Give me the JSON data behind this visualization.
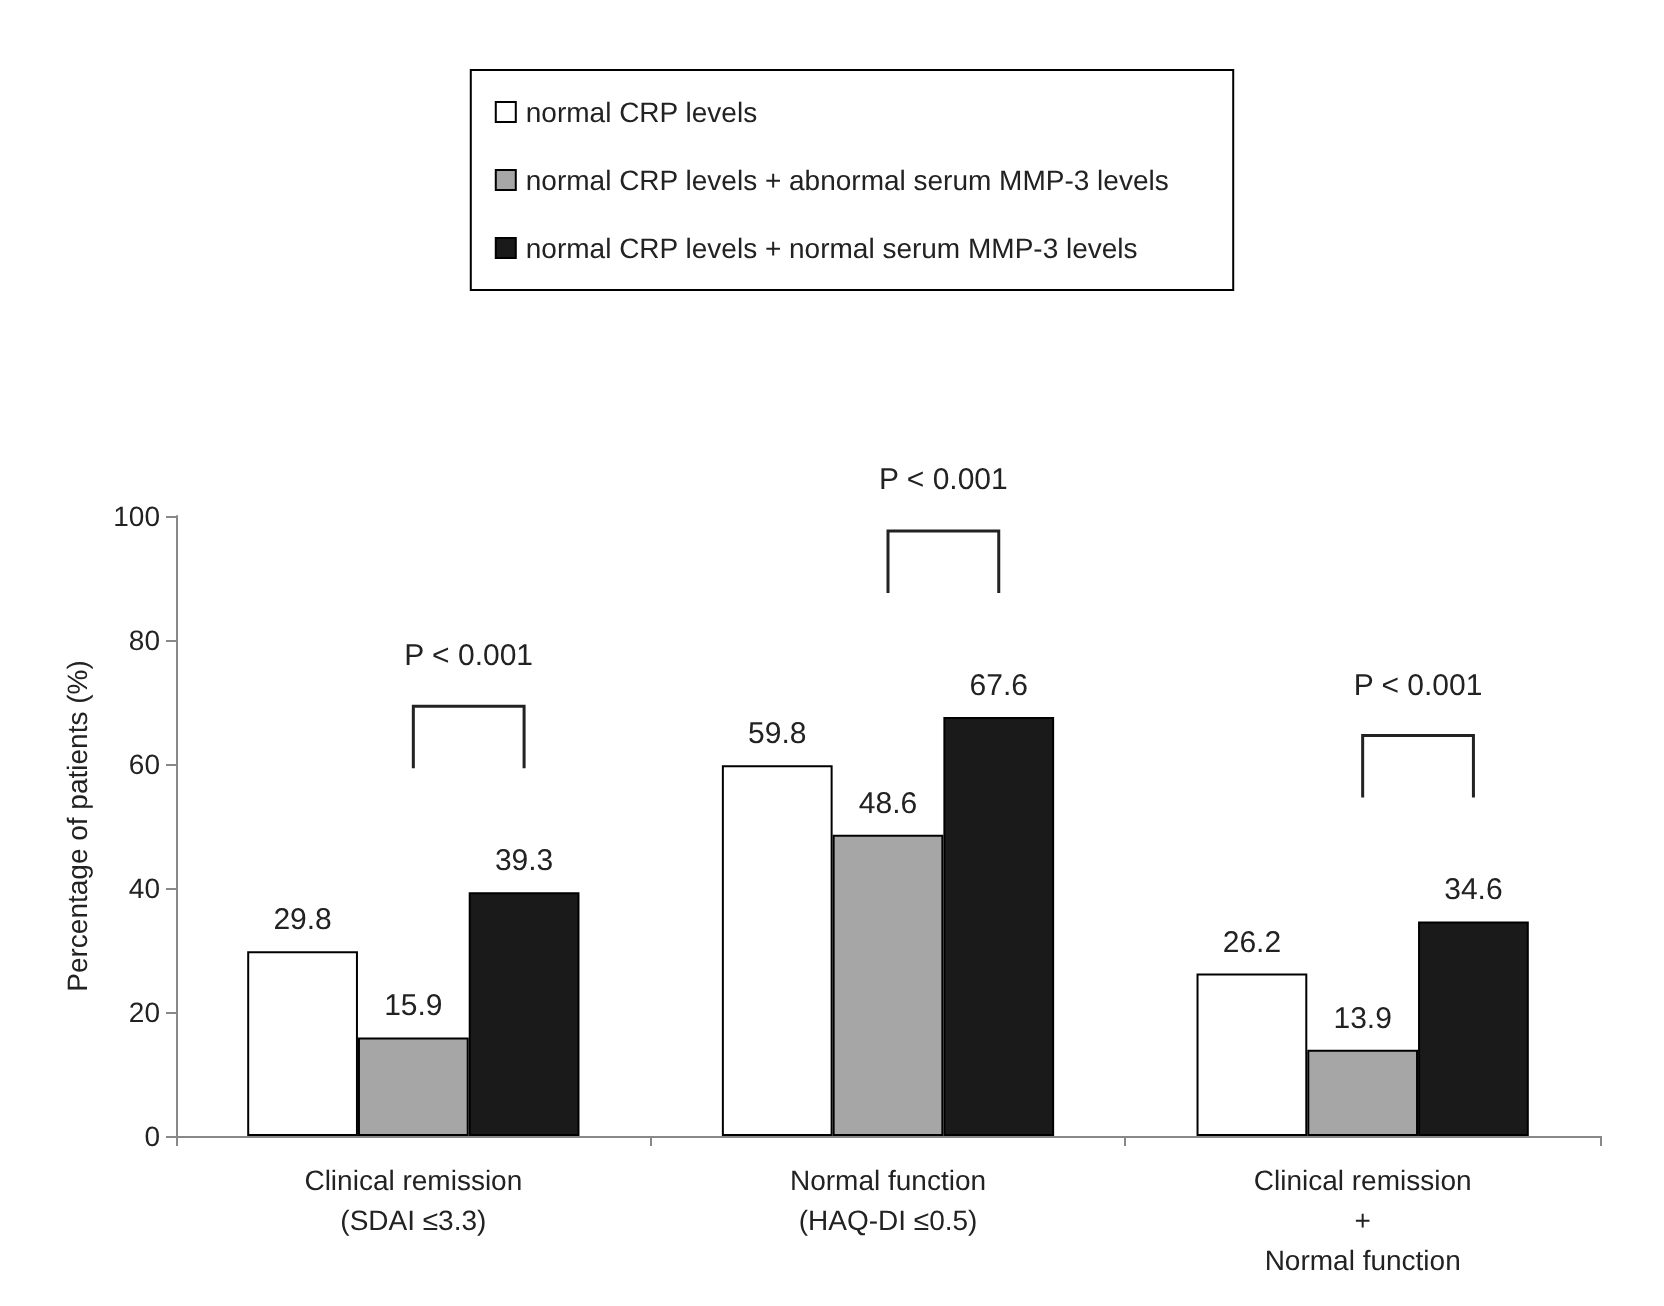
{
  "chart_data": {
    "type": "bar",
    "ylabel": "Percentage of patients (%)",
    "categories": [
      "Clinical remission\n(SDAI ≤3.3)",
      "Normal function\n(HAQ-DI ≤0.5)",
      "Clinical remission\n+\nNormal function"
    ],
    "series": [
      {
        "name": "normal CRP levels",
        "color": "#ffffff",
        "values": [
          29.8,
          59.8,
          26.2
        ]
      },
      {
        "name": "normal CRP levels + abnormal serum MMP-3 levels",
        "color": "#a6a6a6",
        "values": [
          15.9,
          48.6,
          13.9
        ]
      },
      {
        "name": "normal CRP levels + normal serum MMP-3 levels",
        "color": "#1a1a1a",
        "values": [
          39.3,
          67.6,
          34.6
        ]
      }
    ],
    "ylim": [
      0,
      100
    ],
    "yticks": [
      0,
      20,
      40,
      60,
      80,
      100
    ],
    "grid": false,
    "legend": "top",
    "data_labels": true,
    "annotations": [
      "P < 0.001",
      "P < 0.001",
      "P < 0.001"
    ]
  }
}
